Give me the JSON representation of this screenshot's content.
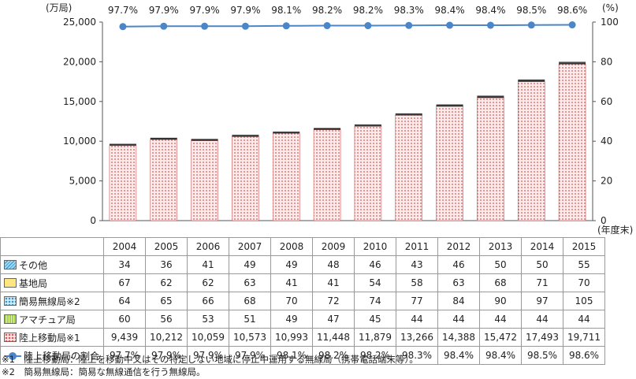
{
  "chart_data": {
    "type": "bar",
    "left_unit": "(万局)",
    "right_unit": "(%)",
    "x_suffix": "(年度末)",
    "categories": [
      "2004",
      "2005",
      "2006",
      "2007",
      "2008",
      "2009",
      "2010",
      "2011",
      "2012",
      "2013",
      "2014",
      "2015"
    ],
    "ylim": [
      0,
      25000
    ],
    "y_ticks": [
      "0",
      "5,000",
      "10,000",
      "15,000",
      "20,000",
      "25,000"
    ],
    "y2lim": [
      0,
      100
    ],
    "y2_ticks": [
      "0",
      "20",
      "40",
      "60",
      "80",
      "100"
    ],
    "grid": false,
    "series": [
      {
        "name": "その他",
        "kind": "bar",
        "color": "#3a8fc4",
        "values": [
          34,
          36,
          41,
          49,
          49,
          48,
          46,
          43,
          46,
          50,
          50,
          55
        ],
        "labels": [
          "34",
          "36",
          "41",
          "49",
          "49",
          "48",
          "46",
          "43",
          "46",
          "50",
          "50",
          "55"
        ]
      },
      {
        "name": "基地局",
        "kind": "bar",
        "color": "#ffe680",
        "values": [
          67,
          62,
          62,
          63,
          41,
          41,
          54,
          58,
          63,
          68,
          71,
          70
        ],
        "labels": [
          "67",
          "62",
          "62",
          "63",
          "41",
          "41",
          "54",
          "58",
          "63",
          "68",
          "71",
          "70"
        ]
      },
      {
        "name": "簡易無線局※2",
        "kind": "bar",
        "color": "#7fc8e8",
        "values": [
          64,
          65,
          66,
          68,
          70,
          72,
          74,
          77,
          84,
          90,
          97,
          105
        ],
        "labels": [
          "64",
          "65",
          "66",
          "68",
          "70",
          "72",
          "74",
          "77",
          "84",
          "90",
          "97",
          "105"
        ]
      },
      {
        "name": "アマチュア局",
        "kind": "bar",
        "color": "#a8d24a",
        "values": [
          60,
          56,
          53,
          51,
          49,
          47,
          45,
          44,
          44,
          44,
          44,
          44
        ],
        "labels": [
          "60",
          "56",
          "53",
          "51",
          "49",
          "47",
          "45",
          "44",
          "44",
          "44",
          "44",
          "44"
        ]
      },
      {
        "name": "陸上移動局※1",
        "kind": "bar",
        "color": "#e05050",
        "values": [
          9439,
          10212,
          10059,
          10573,
          10993,
          11448,
          11879,
          13266,
          14388,
          15472,
          17493,
          19711
        ],
        "labels": [
          "9,439",
          "10,212",
          "10,059",
          "10,573",
          "10,993",
          "11,448",
          "11,879",
          "13,266",
          "14,388",
          "15,472",
          "17,493",
          "19,711"
        ]
      },
      {
        "name": "陸上移動局の割合",
        "kind": "line",
        "color": "#4a86c8",
        "values": [
          97.7,
          97.9,
          97.9,
          97.9,
          98.1,
          98.2,
          98.2,
          98.3,
          98.4,
          98.4,
          98.5,
          98.6
        ],
        "labels": [
          "97.7%",
          "97.9%",
          "97.9%",
          "97.9%",
          "98.1%",
          "98.2%",
          "98.2%",
          "98.3%",
          "98.4%",
          "98.4%",
          "98.5%",
          "98.6%"
        ]
      }
    ]
  },
  "notes": [
    "※1　陸上移動局：陸上を移動中又はその特定しない地域に停止中運用する無線局（携帯電話端末等）。",
    "※2　簡易無線局：簡易な無線通信を行う無線局。"
  ]
}
